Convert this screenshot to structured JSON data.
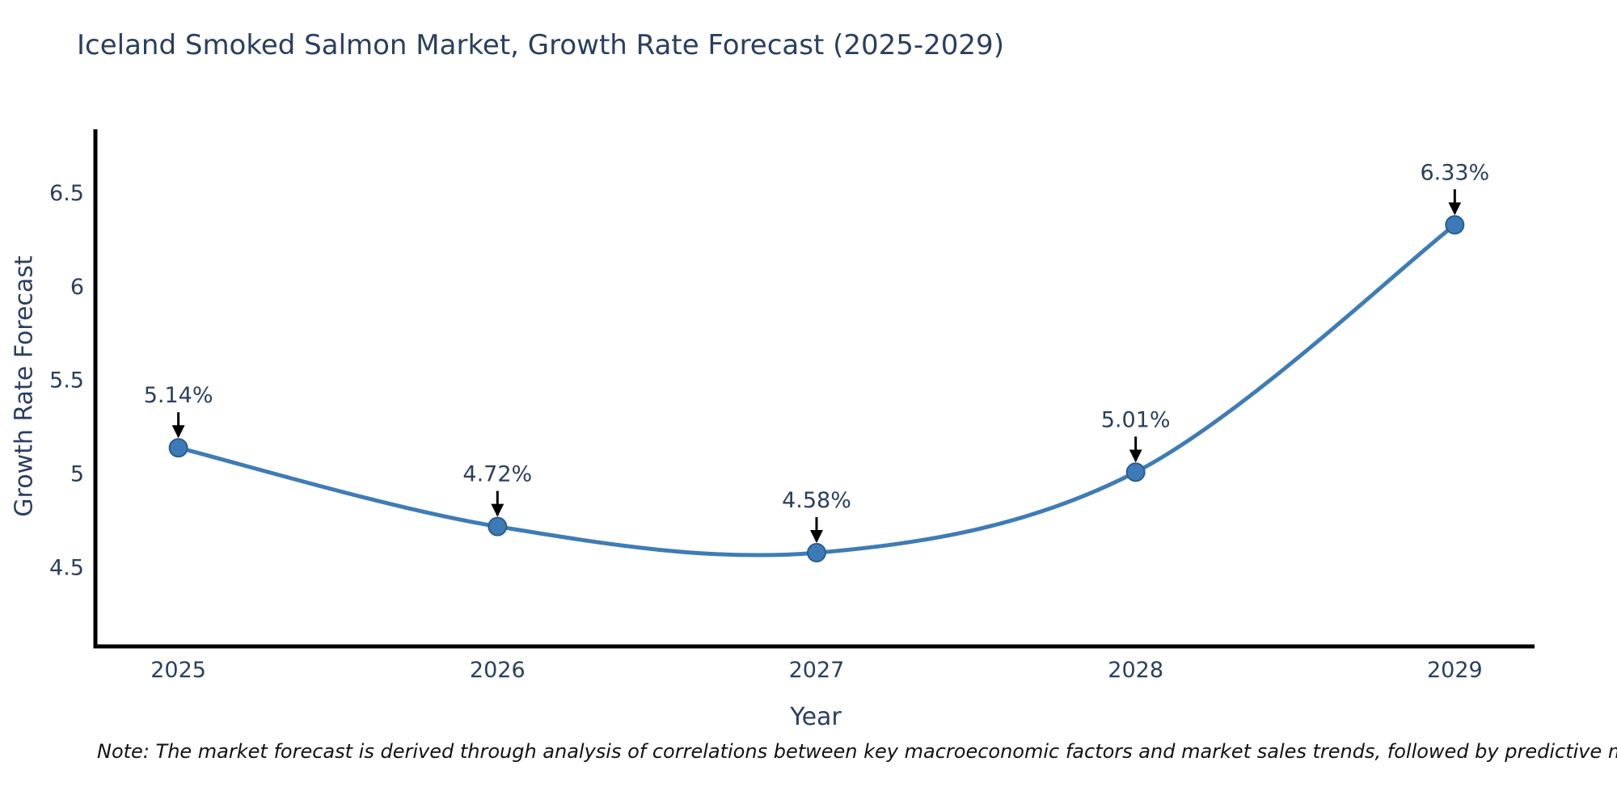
{
  "chart": {
    "title": "Iceland Smoked Salmon Market, Growth Rate Forecast (2025-2029)"
  },
  "note": {
    "text": "Note: The market forecast is derived through analysis of correlations between key macroeconomic factors and market sales trends, followed by predictive modeling to project future sales"
  },
  "chart_data": {
    "type": "line",
    "curve": "spline",
    "title": "Iceland Smoked Salmon Market, Growth Rate Forecast (2025-2029)",
    "xlabel": "Year",
    "ylabel": "Growth Rate Forecast",
    "x": [
      2025,
      2026,
      2027,
      2028,
      2029
    ],
    "values": [
      5.14,
      4.72,
      4.58,
      5.01,
      6.33
    ],
    "point_labels": [
      "5.14%",
      "4.72%",
      "4.58%",
      "5.01%",
      "6.33%"
    ],
    "xtick_labels": [
      "2025",
      "2026",
      "2027",
      "2028",
      "2029"
    ],
    "yticks": [
      6.5,
      6.0,
      5.5,
      5.0,
      4.5
    ],
    "ytick_labels": [
      "6.5",
      "6",
      "5.5",
      "5",
      "4.5"
    ],
    "xlim": [
      2024.74,
      2029.25
    ],
    "ylim": [
      4.08,
      6.84
    ],
    "grid": false,
    "legend": null,
    "colors": {
      "line": "#3e7cb5",
      "marker_fill": "#3d7ab8",
      "marker_edge": "#2b5d8c",
      "axis": "#000000",
      "text": "#2a3f5f",
      "annotation_arrow": "#000000",
      "note_text": "#111111"
    }
  }
}
